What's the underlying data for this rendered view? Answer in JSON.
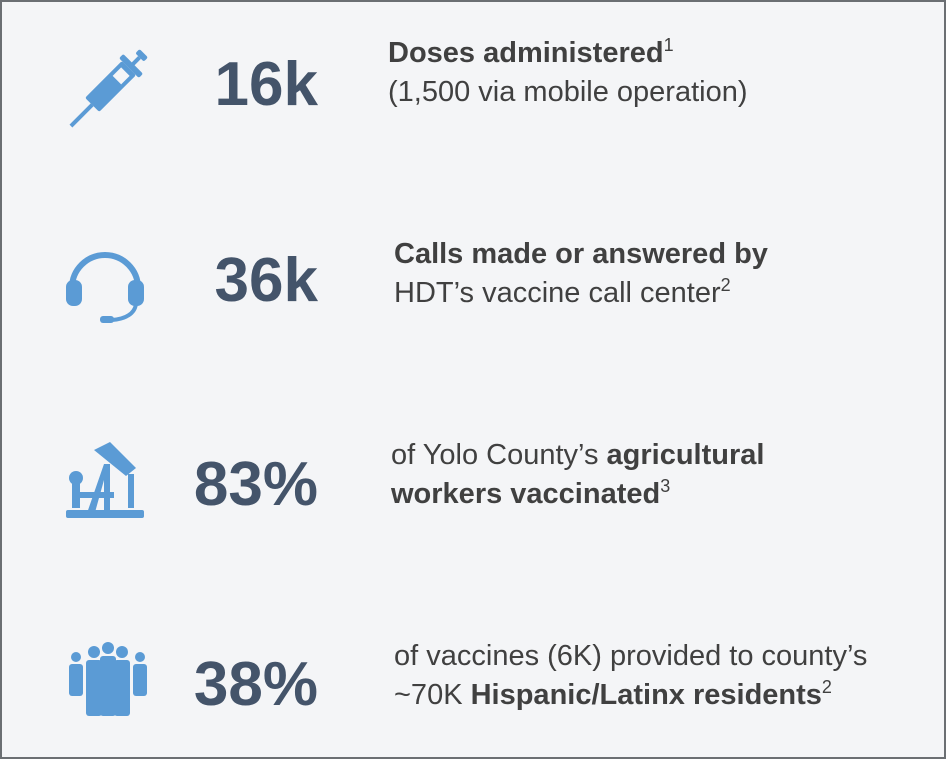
{
  "items": [
    {
      "stat": "16k",
      "lines": [
        [
          {
            "text": "Doses administered",
            "bold": true
          },
          {
            "text": "1",
            "sup": true
          }
        ],
        [
          {
            "text": "(1,500 via mobile operation)"
          }
        ]
      ]
    },
    {
      "stat": "36k",
      "lines": [
        [
          {
            "text": "Calls made or answered by",
            "bold": true
          }
        ],
        [
          {
            "text": "HDT’s vaccine call center"
          },
          {
            "text": "2",
            "sup": true
          }
        ]
      ]
    },
    {
      "stat": "83%",
      "lines": [
        [
          {
            "text": "of Yolo County’s "
          },
          {
            "text": "agricultural",
            "bold": true
          }
        ],
        [
          {
            "text": "workers vaccinated",
            "bold": true
          },
          {
            "text": "3",
            "sup": true
          }
        ]
      ]
    },
    {
      "stat": "38%",
      "lines": [
        [
          {
            "text": "of vaccines (6K) provided to county’s"
          }
        ],
        [
          {
            "text": "~70K "
          },
          {
            "text": "Hispanic/Latinx residents",
            "bold": true
          },
          {
            "text": "2",
            "sup": true
          }
        ]
      ]
    }
  ]
}
